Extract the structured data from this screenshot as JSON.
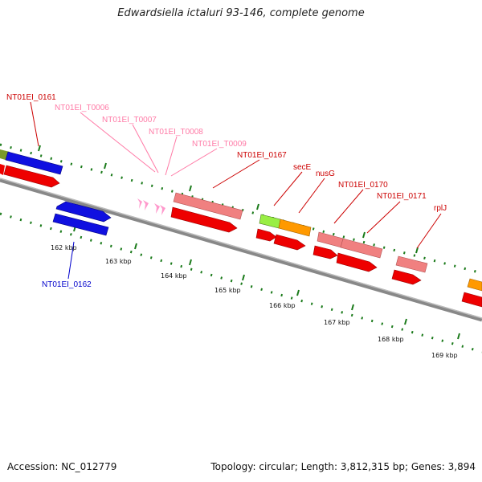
{
  "title": "Edwardsiella ictaluri 93-146, complete genome",
  "footer": {
    "accession": "Accession: NC_012779",
    "summary": "Topology: circular; Length: 3,812,315 bp; Genes: 3,894"
  },
  "colors": {
    "cds": "#ff0000",
    "cds_light": "#f08080",
    "cds_strand2": "#0000ff",
    "rna": "#ff99cc",
    "backbone": "#888888",
    "tick": "#1a7a1a",
    "label_red": "#cc0000",
    "label_pink": "#ff7aa6",
    "label_blue": "#0000cc"
  },
  "scale_labels": [
    "162 kbp",
    "163 kbp",
    "164 kbp",
    "165 kbp",
    "166 kbp",
    "167 kbp",
    "168 kbp",
    "169 kbp"
  ],
  "feature_labels": [
    {
      "text": "NT01EI_0161",
      "group": "red"
    },
    {
      "text": "NT01EI_T0006",
      "group": "pink"
    },
    {
      "text": "NT01EI_T0007",
      "group": "pink"
    },
    {
      "text": "NT01EI_T0008",
      "group": "pink"
    },
    {
      "text": "NT01EI_T0009",
      "group": "pink"
    },
    {
      "text": "NT01EI_0167",
      "group": "red"
    },
    {
      "text": "secE",
      "group": "red"
    },
    {
      "text": "nusG",
      "group": "red"
    },
    {
      "text": "NT01EI_0170",
      "group": "red"
    },
    {
      "text": "NT01EI_0171",
      "group": "red"
    },
    {
      "text": "rplJ",
      "group": "red"
    },
    {
      "text": "NT01EI_0162",
      "group": "blue"
    }
  ]
}
